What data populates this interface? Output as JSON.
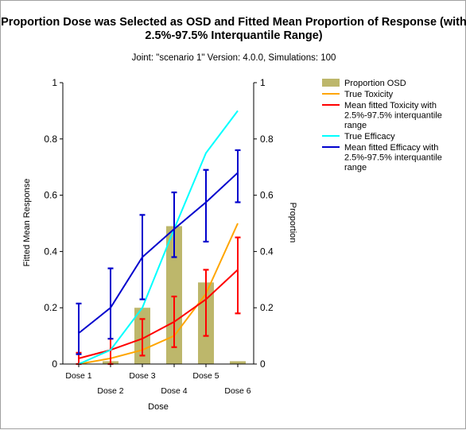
{
  "chart_data": {
    "type": "bar",
    "title_line1": "Proportion Dose was Selected as OSD and Fitted Mean Proportion of Response (with",
    "title_line2": "2.5%-97.5% Interquantile Range)",
    "subtitle": "Joint: \"scenario 1\" Version: 4.0.0, Simulations: 100",
    "xlabel": "Dose",
    "ylabel_left": "Fitted Mean Response",
    "ylabel_right": "Proportion",
    "ylim": [
      0,
      1
    ],
    "yticks": [
      "0",
      "0.2",
      "0.4",
      "0.6",
      "0.8",
      "1"
    ],
    "categories": [
      "Dose 1",
      "Dose 2",
      "Dose 3",
      "Dose 4",
      "Dose 5",
      "Dose 6"
    ],
    "grid": false,
    "legend_position": "right",
    "series": [
      {
        "name": "Proportion OSD",
        "kind": "bar",
        "color": "#bdb76b",
        "values": [
          0.0,
          0.01,
          0.2,
          0.49,
          0.29,
          0.01
        ]
      },
      {
        "name": "True Toxicity",
        "kind": "line",
        "color": "#ffa500",
        "values": [
          0.0,
          0.02,
          0.05,
          0.1,
          0.25,
          0.5
        ]
      },
      {
        "name": "Mean fitted Toxicity with 2.5%-97.5% interquantile range",
        "kind": "line-errorbar",
        "color": "#ff0000",
        "values": [
          0.02,
          0.05,
          0.09,
          0.15,
          0.23,
          0.335
        ],
        "lower": [
          0.0,
          0.0,
          0.03,
          0.06,
          0.1,
          0.18
        ],
        "upper": [
          0.04,
          0.09,
          0.16,
          0.24,
          0.335,
          0.45
        ]
      },
      {
        "name": "True Efficacy",
        "kind": "line",
        "color": "#00ffff",
        "values": [
          0.0,
          0.05,
          0.2,
          0.48,
          0.75,
          0.9
        ]
      },
      {
        "name": "Mean fitted Efficacy with 2.5%-97.5% interquantile range",
        "kind": "line-errorbar",
        "color": "#0000cd",
        "values": [
          0.11,
          0.2,
          0.38,
          0.48,
          0.575,
          0.68
        ],
        "lower": [
          0.035,
          0.09,
          0.23,
          0.38,
          0.435,
          0.575
        ],
        "upper": [
          0.215,
          0.34,
          0.53,
          0.61,
          0.69,
          0.76
        ]
      }
    ]
  }
}
